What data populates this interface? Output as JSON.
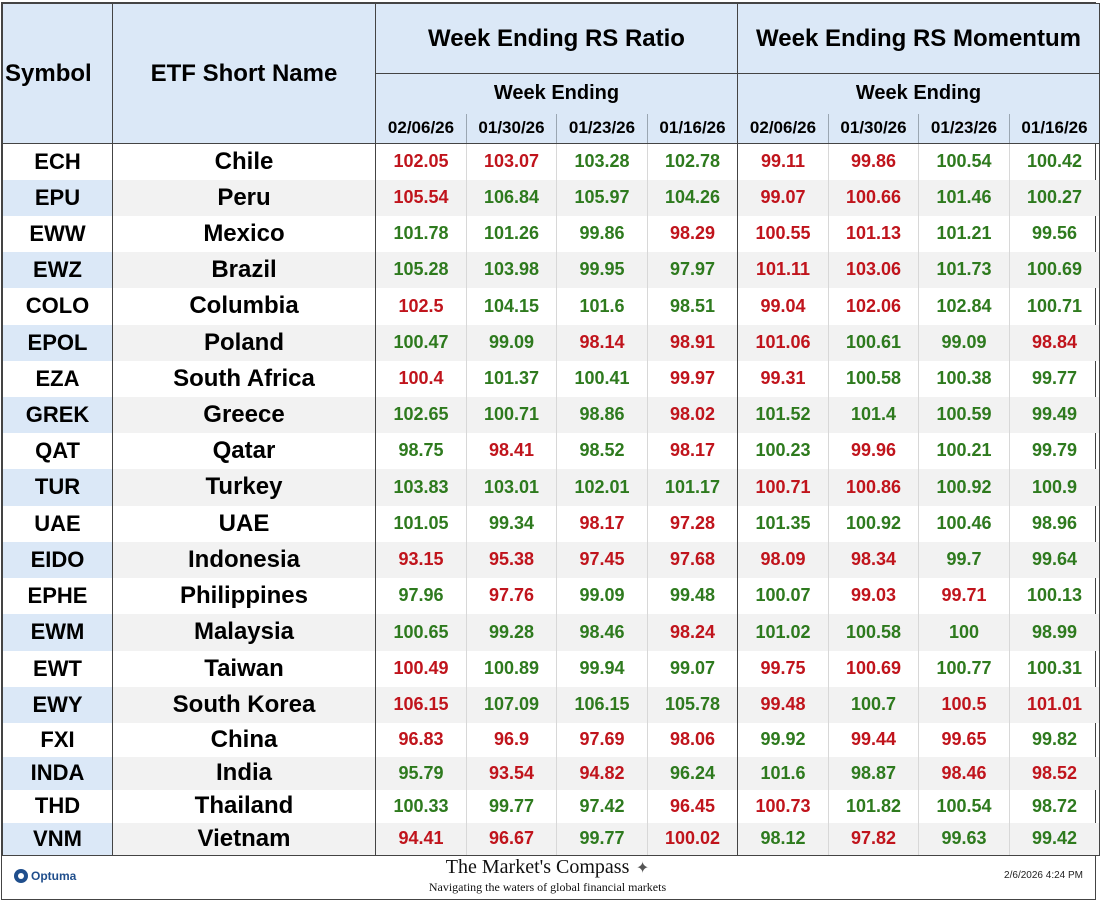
{
  "headers": {
    "symbol": "Symbol",
    "name": "ETF Short Name",
    "rs_ratio": "Week Ending RS Ratio",
    "rs_momentum": "Week Ending RS Momentum",
    "week_ending": "Week Ending",
    "dates": [
      "02/06/26",
      "01/30/26",
      "01/23/26",
      "01/16/26"
    ]
  },
  "colors": {
    "green": "#2e7a1e",
    "red": "#c0141c",
    "header_bg": "#dbe8f7"
  },
  "rows": [
    {
      "symbol": "ECH",
      "name": "Chile",
      "ratio": [
        [
          "102.05",
          "red"
        ],
        [
          "103.07",
          "red"
        ],
        [
          "103.28",
          "green"
        ],
        [
          "102.78",
          "green"
        ]
      ],
      "momentum": [
        [
          "99.11",
          "red"
        ],
        [
          "99.86",
          "red"
        ],
        [
          "100.54",
          "green"
        ],
        [
          "100.42",
          "green"
        ]
      ]
    },
    {
      "symbol": "EPU",
      "name": "Peru",
      "ratio": [
        [
          "105.54",
          "red"
        ],
        [
          "106.84",
          "green"
        ],
        [
          "105.97",
          "green"
        ],
        [
          "104.26",
          "green"
        ]
      ],
      "momentum": [
        [
          "99.07",
          "red"
        ],
        [
          "100.66",
          "red"
        ],
        [
          "101.46",
          "green"
        ],
        [
          "100.27",
          "green"
        ]
      ]
    },
    {
      "symbol": "EWW",
      "name": "Mexico",
      "ratio": [
        [
          "101.78",
          "green"
        ],
        [
          "101.26",
          "green"
        ],
        [
          "99.86",
          "green"
        ],
        [
          "98.29",
          "red"
        ]
      ],
      "momentum": [
        [
          "100.55",
          "red"
        ],
        [
          "101.13",
          "red"
        ],
        [
          "101.21",
          "green"
        ],
        [
          "99.56",
          "green"
        ]
      ]
    },
    {
      "symbol": "EWZ",
      "name": "Brazil",
      "ratio": [
        [
          "105.28",
          "green"
        ],
        [
          "103.98",
          "green"
        ],
        [
          "99.95",
          "green"
        ],
        [
          "97.97",
          "green"
        ]
      ],
      "momentum": [
        [
          "101.11",
          "red"
        ],
        [
          "103.06",
          "red"
        ],
        [
          "101.73",
          "green"
        ],
        [
          "100.69",
          "green"
        ]
      ]
    },
    {
      "symbol": "COLO",
      "name": "Columbia",
      "ratio": [
        [
          "102.5",
          "red"
        ],
        [
          "104.15",
          "green"
        ],
        [
          "101.6",
          "green"
        ],
        [
          "98.51",
          "green"
        ]
      ],
      "momentum": [
        [
          "99.04",
          "red"
        ],
        [
          "102.06",
          "red"
        ],
        [
          "102.84",
          "green"
        ],
        [
          "100.71",
          "green"
        ]
      ]
    },
    {
      "symbol": "EPOL",
      "name": "Poland",
      "ratio": [
        [
          "100.47",
          "green"
        ],
        [
          "99.09",
          "green"
        ],
        [
          "98.14",
          "red"
        ],
        [
          "98.91",
          "red"
        ]
      ],
      "momentum": [
        [
          "101.06",
          "red"
        ],
        [
          "100.61",
          "green"
        ],
        [
          "99.09",
          "green"
        ],
        [
          "98.84",
          "red"
        ]
      ]
    },
    {
      "symbol": "EZA",
      "name": "South Africa",
      "ratio": [
        [
          "100.4",
          "red"
        ],
        [
          "101.37",
          "green"
        ],
        [
          "100.41",
          "green"
        ],
        [
          "99.97",
          "red"
        ]
      ],
      "momentum": [
        [
          "99.31",
          "red"
        ],
        [
          "100.58",
          "green"
        ],
        [
          "100.38",
          "green"
        ],
        [
          "99.77",
          "green"
        ]
      ]
    },
    {
      "symbol": "GREK",
      "name": "Greece",
      "ratio": [
        [
          "102.65",
          "green"
        ],
        [
          "100.71",
          "green"
        ],
        [
          "98.86",
          "green"
        ],
        [
          "98.02",
          "red"
        ]
      ],
      "momentum": [
        [
          "101.52",
          "green"
        ],
        [
          "101.4",
          "green"
        ],
        [
          "100.59",
          "green"
        ],
        [
          "99.49",
          "green"
        ]
      ]
    },
    {
      "symbol": "QAT",
      "name": "Qatar",
      "ratio": [
        [
          "98.75",
          "green"
        ],
        [
          "98.41",
          "red"
        ],
        [
          "98.52",
          "green"
        ],
        [
          "98.17",
          "red"
        ]
      ],
      "momentum": [
        [
          "100.23",
          "green"
        ],
        [
          "99.96",
          "red"
        ],
        [
          "100.21",
          "green"
        ],
        [
          "99.79",
          "green"
        ]
      ]
    },
    {
      "symbol": "TUR",
      "name": "Turkey",
      "ratio": [
        [
          "103.83",
          "green"
        ],
        [
          "103.01",
          "green"
        ],
        [
          "102.01",
          "green"
        ],
        [
          "101.17",
          "green"
        ]
      ],
      "momentum": [
        [
          "100.71",
          "red"
        ],
        [
          "100.86",
          "red"
        ],
        [
          "100.92",
          "green"
        ],
        [
          "100.9",
          "green"
        ]
      ]
    },
    {
      "symbol": "UAE",
      "name": "UAE",
      "ratio": [
        [
          "101.05",
          "green"
        ],
        [
          "99.34",
          "green"
        ],
        [
          "98.17",
          "red"
        ],
        [
          "97.28",
          "red"
        ]
      ],
      "momentum": [
        [
          "101.35",
          "green"
        ],
        [
          "100.92",
          "green"
        ],
        [
          "100.46",
          "green"
        ],
        [
          "98.96",
          "green"
        ]
      ]
    },
    {
      "symbol": "EIDO",
      "name": "Indonesia",
      "ratio": [
        [
          "93.15",
          "red"
        ],
        [
          "95.38",
          "red"
        ],
        [
          "97.45",
          "red"
        ],
        [
          "97.68",
          "red"
        ]
      ],
      "momentum": [
        [
          "98.09",
          "red"
        ],
        [
          "98.34",
          "red"
        ],
        [
          "99.7",
          "green"
        ],
        [
          "99.64",
          "green"
        ]
      ]
    },
    {
      "symbol": "EPHE",
      "name": "Philippines",
      "ratio": [
        [
          "97.96",
          "green"
        ],
        [
          "97.76",
          "red"
        ],
        [
          "99.09",
          "green"
        ],
        [
          "99.48",
          "green"
        ]
      ],
      "momentum": [
        [
          "100.07",
          "green"
        ],
        [
          "99.03",
          "red"
        ],
        [
          "99.71",
          "red"
        ],
        [
          "100.13",
          "green"
        ]
      ]
    },
    {
      "symbol": "EWM",
      "name": "Malaysia",
      "ratio": [
        [
          "100.65",
          "green"
        ],
        [
          "99.28",
          "green"
        ],
        [
          "98.46",
          "green"
        ],
        [
          "98.24",
          "red"
        ]
      ],
      "momentum": [
        [
          "101.02",
          "green"
        ],
        [
          "100.58",
          "green"
        ],
        [
          "100",
          "green"
        ],
        [
          "98.99",
          "green"
        ]
      ]
    },
    {
      "symbol": "EWT",
      "name": "Taiwan",
      "ratio": [
        [
          "100.49",
          "red"
        ],
        [
          "100.89",
          "green"
        ],
        [
          "99.94",
          "green"
        ],
        [
          "99.07",
          "green"
        ]
      ],
      "momentum": [
        [
          "99.75",
          "red"
        ],
        [
          "100.69",
          "red"
        ],
        [
          "100.77",
          "green"
        ],
        [
          "100.31",
          "green"
        ]
      ]
    },
    {
      "symbol": "EWY",
      "name": "South Korea",
      "ratio": [
        [
          "106.15",
          "red"
        ],
        [
          "107.09",
          "green"
        ],
        [
          "106.15",
          "green"
        ],
        [
          "105.78",
          "green"
        ]
      ],
      "momentum": [
        [
          "99.48",
          "red"
        ],
        [
          "100.7",
          "green"
        ],
        [
          "100.5",
          "red"
        ],
        [
          "101.01",
          "red"
        ]
      ]
    },
    {
      "symbol": "FXI",
      "name": "China",
      "ratio": [
        [
          "96.83",
          "red"
        ],
        [
          "96.9",
          "red"
        ],
        [
          "97.69",
          "red"
        ],
        [
          "98.06",
          "red"
        ]
      ],
      "momentum": [
        [
          "99.92",
          "green"
        ],
        [
          "99.44",
          "red"
        ],
        [
          "99.65",
          "red"
        ],
        [
          "99.82",
          "green"
        ]
      ]
    },
    {
      "symbol": "INDA",
      "name": "India",
      "ratio": [
        [
          "95.79",
          "green"
        ],
        [
          "93.54",
          "red"
        ],
        [
          "94.82",
          "red"
        ],
        [
          "96.24",
          "green"
        ]
      ],
      "momentum": [
        [
          "101.6",
          "green"
        ],
        [
          "98.87",
          "green"
        ],
        [
          "98.46",
          "red"
        ],
        [
          "98.52",
          "red"
        ]
      ]
    },
    {
      "symbol": "THD",
      "name": "Thailand",
      "ratio": [
        [
          "100.33",
          "green"
        ],
        [
          "99.77",
          "green"
        ],
        [
          "97.42",
          "green"
        ],
        [
          "96.45",
          "red"
        ]
      ],
      "momentum": [
        [
          "100.73",
          "red"
        ],
        [
          "101.82",
          "green"
        ],
        [
          "100.54",
          "green"
        ],
        [
          "98.72",
          "green"
        ]
      ]
    },
    {
      "symbol": "VNM",
      "name": "Vietnam",
      "ratio": [
        [
          "94.41",
          "red"
        ],
        [
          "96.67",
          "red"
        ],
        [
          "99.77",
          "green"
        ],
        [
          "100.02",
          "red"
        ]
      ],
      "momentum": [
        [
          "98.12",
          "green"
        ],
        [
          "97.82",
          "red"
        ],
        [
          "99.63",
          "green"
        ],
        [
          "99.42",
          "green"
        ]
      ]
    }
  ],
  "shaded_rows": [
    1,
    3,
    5,
    7,
    9,
    11,
    13,
    15,
    17,
    19
  ],
  "footer": {
    "logo_text": "Optuma",
    "title": "The Market's Compass",
    "compass_icon": "✦",
    "tagline": "Navigating the waters of global financial markets",
    "timestamp": "2/6/2026 4:24 PM"
  }
}
